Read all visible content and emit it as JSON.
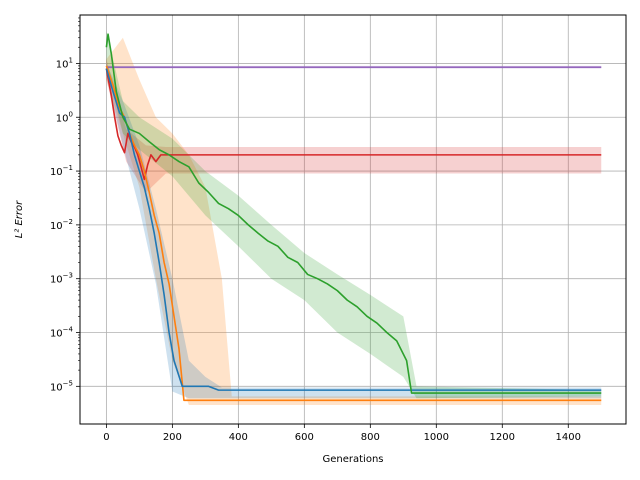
{
  "chart_data": {
    "type": "line",
    "xlabel": "Generations",
    "ylabel": "L² Error",
    "xlim": [
      -80,
      1575
    ],
    "ylim_log10": [
      -5.7,
      1.9
    ],
    "y_scale": "log",
    "grid": true,
    "x_ticks": [
      0,
      200,
      400,
      600,
      800,
      1000,
      1200,
      1400
    ],
    "x_tick_labels": [
      "0",
      "200",
      "400",
      "600",
      "800",
      "1000",
      "1200",
      "1400"
    ],
    "y_ticks_log10": [
      1,
      0,
      -1,
      -2,
      -3,
      -4,
      -5
    ],
    "y_tick_labels": [
      {
        "base": "10",
        "exp": "1"
      },
      {
        "base": "10",
        "exp": "0"
      },
      {
        "base": "10",
        "exp": "−1"
      },
      {
        "base": "10",
        "exp": "−2"
      },
      {
        "base": "10",
        "exp": "−3"
      },
      {
        "base": "10",
        "exp": "−4"
      },
      {
        "base": "10",
        "exp": "−5"
      }
    ],
    "series": [
      {
        "color": "#9467bd",
        "points": [
          [
            0,
            8.5
          ],
          [
            20,
            8.5
          ],
          [
            1500,
            8.5
          ]
        ],
        "band": [
          [
            0,
            9.0,
            8.0
          ],
          [
            1500,
            9.0,
            8.0
          ]
        ]
      },
      {
        "color": "#d62728",
        "points": [
          [
            0,
            8
          ],
          [
            15,
            2.5
          ],
          [
            25,
            1.0
          ],
          [
            35,
            0.45
          ],
          [
            45,
            0.3
          ],
          [
            55,
            0.22
          ],
          [
            65,
            0.5
          ],
          [
            75,
            0.35
          ],
          [
            85,
            0.28
          ],
          [
            95,
            0.2
          ],
          [
            105,
            0.12
          ],
          [
            115,
            0.07
          ],
          [
            125,
            0.13
          ],
          [
            135,
            0.2
          ],
          [
            150,
            0.15
          ],
          [
            165,
            0.2
          ],
          [
            180,
            0.2
          ],
          [
            1500,
            0.2
          ]
        ],
        "band": [
          [
            0,
            12,
            5
          ],
          [
            60,
            0.6,
            0.15
          ],
          [
            120,
            0.3,
            0.04
          ],
          [
            180,
            0.28,
            0.09
          ],
          [
            1500,
            0.28,
            0.09
          ]
        ]
      },
      {
        "color": "#ff7f0e",
        "points": [
          [
            0,
            9
          ],
          [
            20,
            4
          ],
          [
            40,
            1.5
          ],
          [
            55,
            1.0
          ],
          [
            70,
            0.5
          ],
          [
            85,
            0.3
          ],
          [
            100,
            0.2
          ],
          [
            115,
            0.1
          ],
          [
            130,
            0.04
          ],
          [
            145,
            0.015
          ],
          [
            160,
            0.007
          ],
          [
            175,
            0.002
          ],
          [
            190,
            0.0008
          ],
          [
            205,
            0.0002
          ],
          [
            220,
            5e-05
          ],
          [
            235,
            5.5e-06
          ],
          [
            1500,
            5.5e-06
          ]
        ],
        "band": [
          [
            0,
            12,
            5
          ],
          [
            50,
            30,
            0.5
          ],
          [
            100,
            5,
            0.05
          ],
          [
            150,
            1,
            0.001
          ],
          [
            200,
            0.5,
            3e-05
          ],
          [
            250,
            0.2,
            4.5e-06
          ],
          [
            300,
            0.05,
            4.5e-06
          ],
          [
            350,
            0.001,
            4.5e-06
          ],
          [
            380,
            6.5e-06,
            4.5e-06
          ],
          [
            1500,
            6.5e-06,
            4.5e-06
          ]
        ]
      },
      {
        "color": "#1f77b4",
        "points": [
          [
            0,
            8
          ],
          [
            20,
            3
          ],
          [
            40,
            1.2
          ],
          [
            55,
            1.0
          ],
          [
            70,
            0.5
          ],
          [
            85,
            0.2
          ],
          [
            100,
            0.1
          ],
          [
            115,
            0.05
          ],
          [
            130,
            0.02
          ],
          [
            145,
            0.007
          ],
          [
            160,
            0.002
          ],
          [
            175,
            0.0005
          ],
          [
            190,
            0.0001
          ],
          [
            205,
            3e-05
          ],
          [
            230,
            1e-05
          ],
          [
            310,
            1e-05
          ],
          [
            340,
            8.5e-06
          ],
          [
            1500,
            8.5e-06
          ]
        ],
        "band": [
          [
            0,
            10,
            6
          ],
          [
            50,
            2,
            0.3
          ],
          [
            100,
            0.3,
            0.02
          ],
          [
            150,
            0.02,
            0.0008
          ],
          [
            200,
            0.001,
            8e-06
          ],
          [
            250,
            3e-05,
            6e-06
          ],
          [
            300,
            1.5e-05,
            6e-06
          ],
          [
            350,
            9.5e-06,
            6e-06
          ],
          [
            1500,
            9.5e-06,
            6e-06
          ]
        ]
      },
      {
        "color": "#2ca02c",
        "points": [
          [
            0,
            20
          ],
          [
            5,
            35
          ],
          [
            15,
            15
          ],
          [
            30,
            3
          ],
          [
            50,
            1.0
          ],
          [
            70,
            0.6
          ],
          [
            100,
            0.5
          ],
          [
            130,
            0.35
          ],
          [
            160,
            0.25
          ],
          [
            190,
            0.2
          ],
          [
            220,
            0.15
          ],
          [
            250,
            0.12
          ],
          [
            280,
            0.06
          ],
          [
            310,
            0.04
          ],
          [
            340,
            0.025
          ],
          [
            370,
            0.02
          ],
          [
            400,
            0.015
          ],
          [
            430,
            0.01
          ],
          [
            460,
            0.007
          ],
          [
            490,
            0.005
          ],
          [
            520,
            0.004
          ],
          [
            550,
            0.0025
          ],
          [
            580,
            0.002
          ],
          [
            610,
            0.0012
          ],
          [
            640,
            0.001
          ],
          [
            670,
            0.0008
          ],
          [
            700,
            0.0006
          ],
          [
            730,
            0.0004
          ],
          [
            760,
            0.0003
          ],
          [
            790,
            0.0002
          ],
          [
            820,
            0.00015
          ],
          [
            850,
            0.0001
          ],
          [
            880,
            7e-05
          ],
          [
            910,
            3e-05
          ],
          [
            925,
            7.5e-06
          ],
          [
            1500,
            7.5e-06
          ]
        ],
        "band": [
          [
            0,
            40,
            10
          ],
          [
            50,
            2,
            0.5
          ],
          [
            100,
            1.0,
            0.25
          ],
          [
            200,
            0.4,
            0.08
          ],
          [
            300,
            0.1,
            0.015
          ],
          [
            400,
            0.035,
            0.004
          ],
          [
            500,
            0.01,
            0.001
          ],
          [
            600,
            0.003,
            0.0004
          ],
          [
            700,
            0.0012,
            0.0001
          ],
          [
            800,
            0.0005,
            4e-05
          ],
          [
            900,
            0.0002,
            1.5e-05
          ],
          [
            940,
            1e-05,
            6e-06
          ],
          [
            1500,
            8.5e-06,
            6.5e-06
          ]
        ]
      }
    ]
  }
}
